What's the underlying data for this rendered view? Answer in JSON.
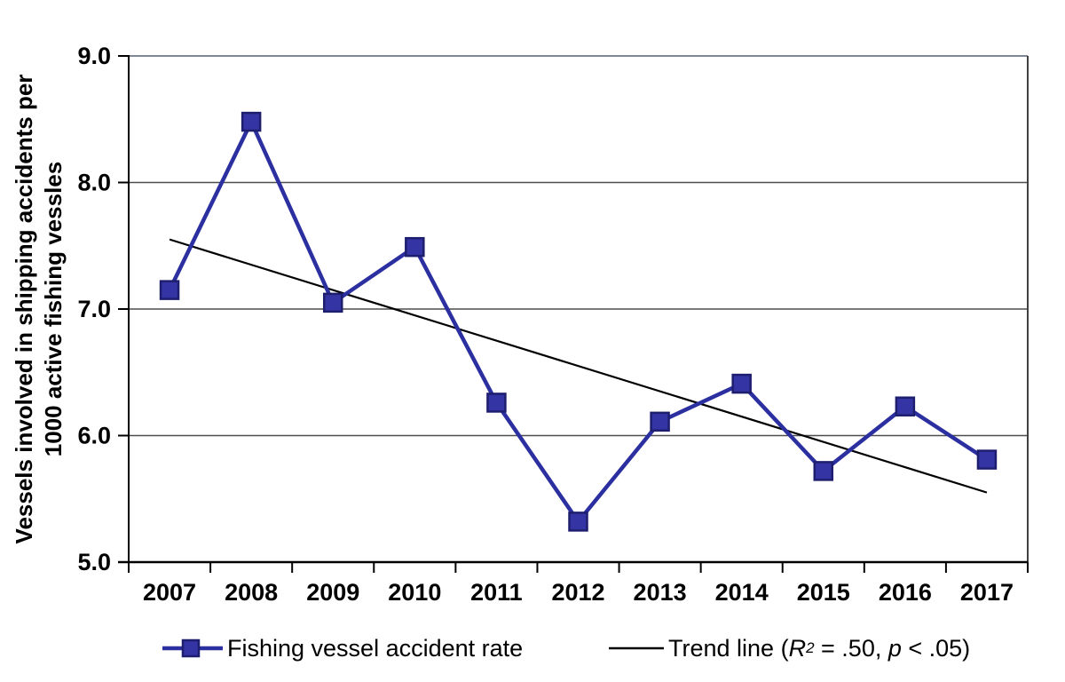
{
  "chart_data": {
    "type": "line",
    "title": "",
    "xlabel": "",
    "ylabel_line1": "Vessels involved in shipping accidents per",
    "ylabel_line2": "1000 active fishing vessles",
    "categories": [
      "2007",
      "2008",
      "2009",
      "2010",
      "2011",
      "2012",
      "2013",
      "2014",
      "2015",
      "2016",
      "2017"
    ],
    "series": [
      {
        "name": "Fishing vessel accident rate",
        "values": [
          7.15,
          8.48,
          7.05,
          7.49,
          6.26,
          5.32,
          6.11,
          6.41,
          5.72,
          6.23,
          5.81
        ],
        "color": "#2b2fa0",
        "marker": "square",
        "marker_fill": "#3534a4",
        "marker_stroke": "#1e1e6e"
      }
    ],
    "trend_line": {
      "name": "Trend line",
      "start_value": 7.55,
      "end_value": 5.55,
      "color": "#000000",
      "r_squared": ".50",
      "p_value": "< .05"
    },
    "ylim": [
      5.0,
      9.0
    ],
    "y_ticks": [
      {
        "value": 5,
        "label": "5.0"
      },
      {
        "value": 6,
        "label": "6.0"
      },
      {
        "value": 7,
        "label": "7.0"
      },
      {
        "value": 8,
        "label": "8.0"
      },
      {
        "value": 9,
        "label": "9.0"
      }
    ],
    "grid": "horizontal",
    "legend_position": "bottom"
  },
  "legend": {
    "series": {
      "label": "Fishing vessel accident rate"
    },
    "trend": {
      "label": "Trend line",
      "open": " (",
      "r": "R",
      "sup": "2",
      "mid": " = .50, ",
      "p": "p",
      "tail": " < .05)"
    }
  },
  "colors": {
    "series_line": "#2b2fa0",
    "marker_fill": "#3534a4",
    "marker_stroke": "#1e1e6e",
    "gridline": "#4d4d4d",
    "plot_border_top": "#7f8795",
    "plot_border_right": "#404040",
    "axis": "#000000",
    "trend": "#000000",
    "background": "#ffffff"
  }
}
